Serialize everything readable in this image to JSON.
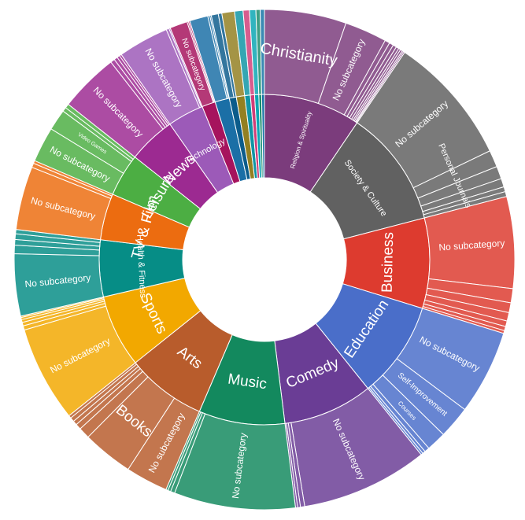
{
  "chart_data": {
    "type": "sunburst",
    "title": "",
    "levels": [
      "category",
      "subcategory"
    ],
    "categories": [
      {
        "name": "Religion & Spirituality",
        "color": "#7b3c7c",
        "children": [
          {
            "name": "Christianity",
            "value": 5.8
          },
          {
            "name": "No subcategory",
            "value": 3.0
          },
          {
            "name": "",
            "value": 0.35
          },
          {
            "name": "",
            "value": 0.3
          },
          {
            "name": "",
            "value": 0.25
          },
          {
            "name": "",
            "value": 0.2
          },
          {
            "name": "",
            "value": 0.15
          },
          {
            "name": "",
            "value": 0.15
          },
          {
            "name": "",
            "value": 0.1
          },
          {
            "name": "",
            "value": 0.1
          }
        ]
      },
      {
        "name": "Society & Culture",
        "color": "#616161",
        "children": [
          {
            "name": "No subcategory",
            "value": 9.2
          },
          {
            "name": "Personal Journals",
            "value": 1.2
          },
          {
            "name": "",
            "value": 0.9
          },
          {
            "name": "",
            "value": 0.6
          },
          {
            "name": "",
            "value": 0.35
          },
          {
            "name": "",
            "value": 0.35
          }
        ]
      },
      {
        "name": "Business",
        "color": "#dd3b2f",
        "children": [
          {
            "name": "No subcategory",
            "value": 6.5
          },
          {
            "name": "",
            "value": 1.0
          },
          {
            "name": "",
            "value": 0.7
          },
          {
            "name": "",
            "value": 0.6
          },
          {
            "name": "",
            "value": 0.4
          },
          {
            "name": "",
            "value": 0.3
          },
          {
            "name": "",
            "value": 0.2
          }
        ]
      },
      {
        "name": "Education",
        "color": "#4a6ec9",
        "children": [
          {
            "name": "No subcategory",
            "value": 6.0
          },
          {
            "name": "Self-Improvement",
            "value": 2.3
          },
          {
            "name": "Courses",
            "value": 1.4
          },
          {
            "name": "",
            "value": 0.35
          },
          {
            "name": "",
            "value": 0.2
          },
          {
            "name": "",
            "value": 0.15
          }
        ]
      },
      {
        "name": "Comedy",
        "color": "#6a3d95",
        "children": [
          {
            "name": "No subcategory",
            "value": 9.0
          },
          {
            "name": "",
            "value": 0.3
          },
          {
            "name": "",
            "value": 0.2
          },
          {
            "name": "",
            "value": 0.15
          }
        ]
      },
      {
        "name": "Music",
        "color": "#13895e",
        "children": [
          {
            "name": "No subcategory",
            "value": 8.6
          },
          {
            "name": "",
            "value": 0.3
          },
          {
            "name": "",
            "value": 0.2
          },
          {
            "name": "",
            "value": 0.15
          }
        ]
      },
      {
        "name": "Arts",
        "color": "#b85c2c",
        "children": [
          {
            "name": "No subcategory",
            "value": 3.0
          },
          {
            "name": "Books",
            "value": 3.6
          },
          {
            "name": "",
            "value": 0.8
          },
          {
            "name": "",
            "value": 0.4
          },
          {
            "name": "",
            "value": 0.3
          },
          {
            "name": "",
            "value": 0.3
          },
          {
            "name": "",
            "value": 0.2
          }
        ]
      },
      {
        "name": "Sports",
        "color": "#f2a800",
        "children": [
          {
            "name": "No subcategory",
            "value": 6.8
          },
          {
            "name": "",
            "value": 0.3
          },
          {
            "name": "",
            "value": 0.25
          },
          {
            "name": "",
            "value": 0.2
          },
          {
            "name": "",
            "value": 0.15
          },
          {
            "name": "",
            "value": 0.1
          }
        ]
      },
      {
        "name": "Health & Fitness",
        "color": "#068d86",
        "children": [
          {
            "name": "No subcategory",
            "value": 4.4
          },
          {
            "name": "",
            "value": 0.6
          },
          {
            "name": "",
            "value": 0.4
          },
          {
            "name": "",
            "value": 0.4
          },
          {
            "name": "",
            "value": 0.3
          }
        ]
      },
      {
        "name": "TV & Film",
        "color": "#ec6c10",
        "children": [
          {
            "name": "No subcategory",
            "value": 4.5
          },
          {
            "name": "",
            "value": 0.3
          },
          {
            "name": "",
            "value": 0.2
          }
        ]
      },
      {
        "name": "Leisure",
        "color": "#4cae43",
        "children": [
          {
            "name": "No subcategory",
            "value": 2.5
          },
          {
            "name": "Video Games",
            "value": 1.5
          },
          {
            "name": "",
            "value": 0.3
          },
          {
            "name": "",
            "value": 0.3
          }
        ]
      },
      {
        "name": "News",
        "color": "#9c2a91",
        "children": [
          {
            "name": "No subcategory",
            "value": 4.2
          },
          {
            "name": "",
            "value": 0.3
          },
          {
            "name": "",
            "value": 0.25
          },
          {
            "name": "",
            "value": 0.2
          },
          {
            "name": "",
            "value": 0.15
          }
        ]
      },
      {
        "name": "Technology",
        "color": "#9c5ab8",
        "children": [
          {
            "name": "No subcategory",
            "value": 3.6
          },
          {
            "name": "",
            "value": 0.2
          },
          {
            "name": "",
            "value": 0.1
          }
        ]
      },
      {
        "name": "",
        "color": "#a6135d",
        "children": [
          {
            "name": "No subcategory",
            "value": 1.25
          },
          {
            "name": "",
            "value": 0.1
          },
          {
            "name": "",
            "value": 0.1
          }
        ]
      },
      {
        "name": "",
        "color": "#1b6fa6",
        "children": [
          {
            "name": "",
            "value": 1.3
          },
          {
            "name": "",
            "value": 0.15
          },
          {
            "name": "",
            "value": 0.1
          }
        ]
      },
      {
        "name": "",
        "color": "#0c5c8b",
        "children": [
          {
            "name": "",
            "value": 0.5
          },
          {
            "name": "",
            "value": 0.25
          }
        ]
      },
      {
        "name": "",
        "color": "#938021",
        "children": [
          {
            "name": "",
            "value": 0.9
          }
        ]
      },
      {
        "name": "",
        "color": "#0f95a5",
        "children": [
          {
            "name": "",
            "value": 0.6
          }
        ]
      },
      {
        "name": "",
        "color": "#cf3e78",
        "children": [
          {
            "name": "",
            "value": 0.45
          }
        ]
      },
      {
        "name": "",
        "color": "#0aa6b3",
        "children": [
          {
            "name": "",
            "value": 0.45
          }
        ]
      },
      {
        "name": "",
        "color": "#188c6c",
        "children": [
          {
            "name": "",
            "value": 0.3
          }
        ]
      },
      {
        "name": "",
        "color": "#1474a4",
        "children": [
          {
            "name": "",
            "value": 0.3
          }
        ]
      }
    ]
  }
}
